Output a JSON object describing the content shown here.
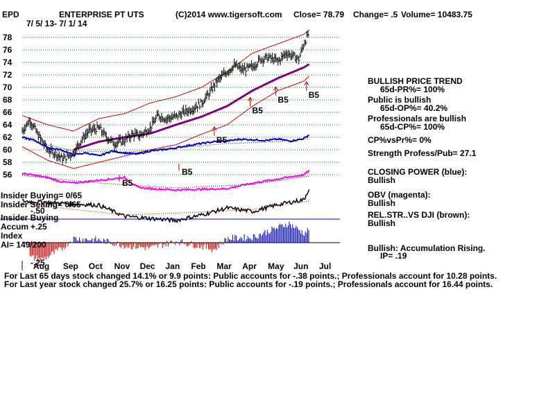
{
  "header": {
    "ticker": "EPD",
    "name": "ENTERPRISE PT UTS",
    "copyright": "(C)2014 www.tigersoft.com",
    "close": "Close=  78.79",
    "change": "Change= .5",
    "volume": "Volume= 10483.75",
    "date_range": "7/ 5/ 13-  7/ 1/ 14"
  },
  "insider": {
    "buying": "Insider Buying= 0/65",
    "selling": "Insider Selling= 0/65",
    "buying_label": "Insider Buying",
    "accum": "Accum",
    "accum_level": "+.25",
    "index": "Index",
    "ai": "AI= 149/200",
    "neg25": "-.25",
    "neg50": "-.50"
  },
  "right_panel": {
    "trend_title": "BULLISH PRICE TREND",
    "pr": "65d-PR%= 100%",
    "public": "Public is bullish",
    "op": "65d-OP%= 40.2%",
    "pros": "Professionals are bullish",
    "cp": "65d-CP%= 100%",
    "cpvspr": "CP%vsPr%=  0%",
    "strength": "Strength Profess/Pub= 27.1",
    "closing_power": "CLOSING POWER (blue):",
    "cp_state": "Bullish",
    "obv": "OBV (magenta):",
    "obv_state": "Bullish",
    "relstr": "REL.STR..VS DJI (brown):",
    "relstr_state": "Bullish",
    "accum_text": "Bullish: Accumulation Rising.",
    "ip": "IP=  .19"
  },
  "footer": {
    "line1": "For Last 65 days stock changed  14.1% or  9.9 points:  Public accounts for -.38 points.;  Professionals account for  10.28 points.",
    "line2": "For Last year stock changed  25.7% or  16.25 points:  Public accounts for -.19 points.;  Professionals account for  16.44 points."
  },
  "colors": {
    "price": "#000000",
    "band": "#cc0000",
    "ma": "#800080",
    "closing_power": "#0000cc",
    "obv": "#ff00ff",
    "relstr": "#000000",
    "accum_pos": "#0000cc",
    "accum_neg": "#cc0000",
    "grid": "#008000",
    "signal": "#cc0000"
  },
  "chart_data": {
    "type": "line",
    "ylim": [
      56,
      79
    ],
    "yticks": [
      "78",
      "76",
      "74",
      "72",
      "70",
      "68",
      "66",
      "64",
      "62",
      "60",
      "58",
      "56"
    ],
    "ytick_values": [
      78,
      76,
      74,
      72,
      70,
      68,
      66,
      64,
      62,
      60,
      58,
      56
    ],
    "xticks": [
      "Aug",
      "Sep",
      "Oct",
      "Nov",
      "Dec",
      "Jan",
      "Feb",
      "Mar",
      "Apr",
      "May",
      "Jun",
      "Jul"
    ],
    "xtick_months": [
      1,
      2,
      3,
      4,
      5,
      6,
      7,
      8,
      9,
      10,
      11,
      12
    ],
    "months_span": 12,
    "series": [
      {
        "name": "CLOSING POWER",
        "x": [
          0,
          0.5,
          1,
          1.5,
          2,
          2.5,
          3,
          3.5,
          4,
          4.5,
          5,
          5.5,
          6,
          6.5,
          7,
          7.5,
          8,
          8.5,
          9,
          9.5,
          10,
          10.5,
          11,
          11.2
        ],
        "y": [
          62.0,
          61.5,
          60.3,
          60.0,
          59.2,
          59.5,
          59.0,
          59.8,
          59.5,
          59.3,
          59.8,
          60.0,
          60.3,
          60.7,
          61.0,
          61.3,
          61.4,
          61.7,
          61.6,
          61.5,
          61.7,
          61.4,
          61.8,
          62.4
        ]
      },
      {
        "name": "OBV",
        "values": []
      },
      {
        "name": "REL.STR..VS DJI",
        "values": []
      }
    ],
    "price": {
      "x": [
        0,
        0.3,
        0.6,
        1,
        1.3,
        1.6,
        2,
        2.3,
        2.6,
        3,
        3.3,
        3.6,
        4,
        4.3,
        4.6,
        5,
        5.3,
        5.6,
        6,
        6.3,
        6.6,
        7,
        7.3,
        7.6,
        8,
        8.3,
        8.6,
        9,
        9.3,
        9.6,
        10,
        10.3,
        10.6,
        10.8,
        11,
        11.2
      ],
      "y": [
        63.0,
        64.8,
        62.5,
        60.0,
        59.4,
        58.5,
        59.5,
        61.5,
        63.0,
        63.5,
        62.0,
        61.0,
        61.5,
        62.5,
        62.3,
        63.5,
        65.5,
        65.0,
        65.3,
        66.0,
        66.5,
        67.5,
        69.0,
        71.0,
        72.5,
        73.5,
        72.8,
        73.3,
        74.5,
        74.8,
        74.2,
        75.5,
        75.0,
        74.5,
        77.0,
        78.79
      ]
    },
    "moving_average": {
      "x": [
        2,
        3,
        4,
        5,
        6,
        7,
        8,
        9,
        10,
        11,
        11.2
      ],
      "y": [
        60.0,
        61.3,
        62.0,
        62.6,
        64.0,
        65.3,
        67.0,
        69.5,
        71.5,
        73.2,
        73.7
      ]
    },
    "upper_band": {
      "x": [
        0,
        1,
        2,
        3,
        4,
        5,
        6,
        7,
        8,
        9,
        10,
        11,
        11.2
      ],
      "y": [
        65.5,
        64.0,
        63.0,
        65.0,
        65.8,
        67.5,
        68.5,
        70.0,
        72.5,
        75.5,
        77.0,
        78.5,
        79.2
      ]
    },
    "lower_band": {
      "x": [
        0,
        1,
        2,
        3,
        4,
        5,
        6,
        7,
        8,
        9,
        10,
        11,
        11.2
      ],
      "y": [
        60.5,
        58.3,
        57.0,
        58.0,
        59.0,
        60.0,
        60.8,
        62.5,
        64.0,
        67.0,
        69.5,
        71.0,
        71.8
      ]
    },
    "annotations": [
      {
        "text": "B5",
        "x": 7.5,
        "y": 61.8
      },
      {
        "text": "B5",
        "x": 8.9,
        "y": 66.5
      },
      {
        "text": "B5",
        "x": 9.9,
        "y": 68.2
      },
      {
        "text": "B5",
        "x": 11.1,
        "y": 69.0
      }
    ],
    "obv_annotation": "B5",
    "cp_annotation": "B5"
  }
}
